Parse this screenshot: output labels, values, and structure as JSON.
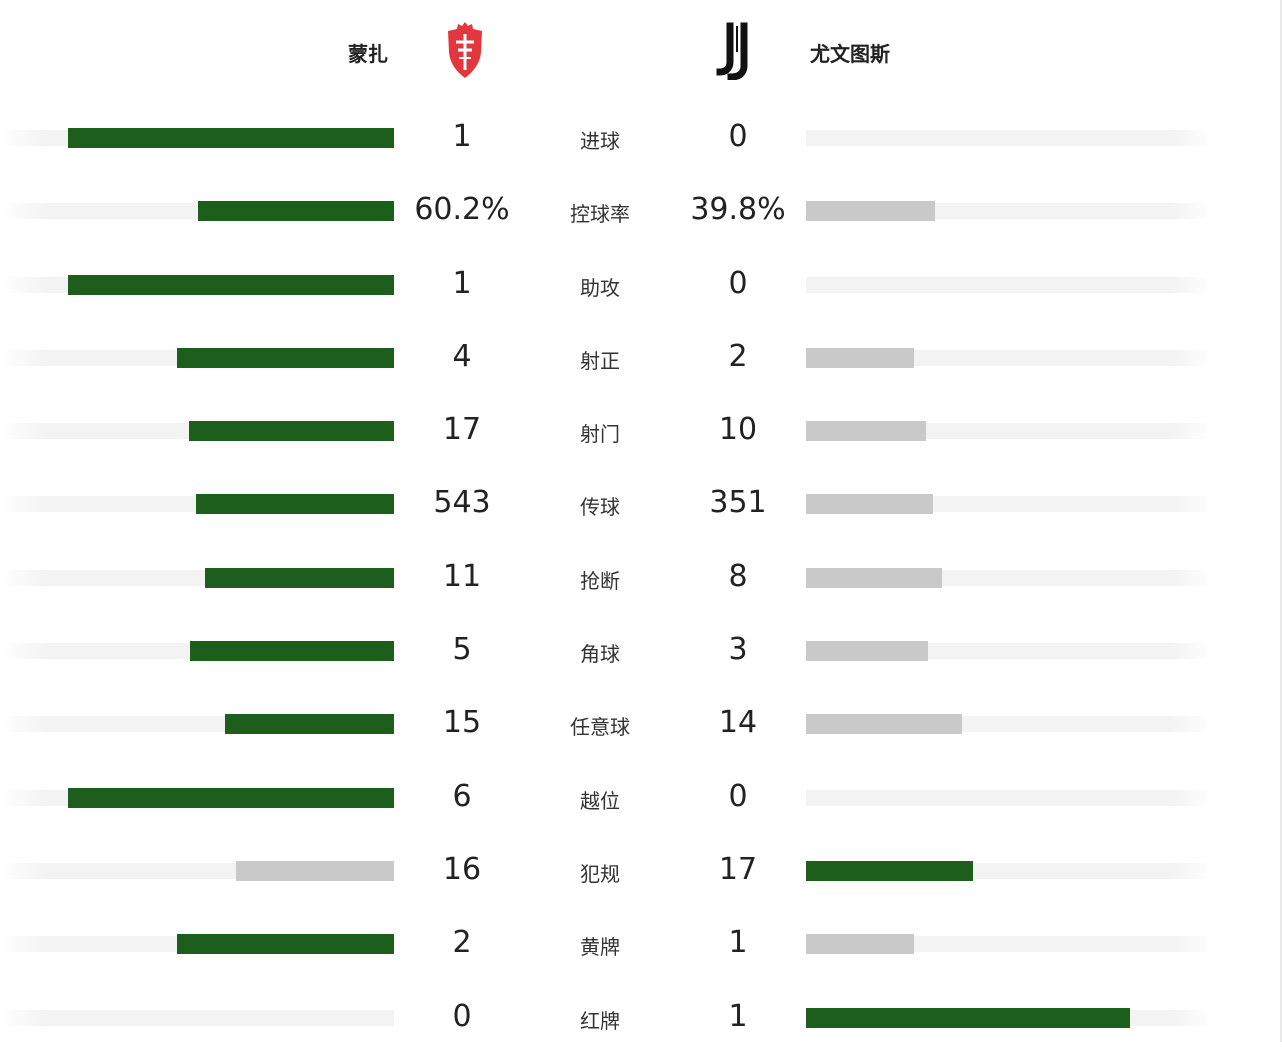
{
  "teams": {
    "home": {
      "name": "蒙扎",
      "logo_color": "#e2373d"
    },
    "away": {
      "name": "尤文图斯",
      "logo_color": "#111111"
    }
  },
  "colors": {
    "leader": "#1d5e1d",
    "trailer": "#c9c9c9",
    "track": "#f3f3f3"
  },
  "stats": [
    {
      "label": "进球",
      "home": "1",
      "away": "0",
      "home_share": 1.0,
      "away_share": 0.0
    },
    {
      "label": "控球率",
      "home": "60.2%",
      "away": "39.8%",
      "home_share": 0.602,
      "away_share": 0.398
    },
    {
      "label": "助攻",
      "home": "1",
      "away": "0",
      "home_share": 1.0,
      "away_share": 0.0
    },
    {
      "label": "射正",
      "home": "4",
      "away": "2",
      "home_share": 0.667,
      "away_share": 0.333
    },
    {
      "label": "射门",
      "home": "17",
      "away": "10",
      "home_share": 0.63,
      "away_share": 0.37
    },
    {
      "label": "传球",
      "home": "543",
      "away": "351",
      "home_share": 0.607,
      "away_share": 0.393
    },
    {
      "label": "抢断",
      "home": "11",
      "away": "8",
      "home_share": 0.579,
      "away_share": 0.421
    },
    {
      "label": "角球",
      "home": "5",
      "away": "3",
      "home_share": 0.625,
      "away_share": 0.375
    },
    {
      "label": "任意球",
      "home": "15",
      "away": "14",
      "home_share": 0.517,
      "away_share": 0.483
    },
    {
      "label": "越位",
      "home": "6",
      "away": "0",
      "home_share": 1.0,
      "away_share": 0.0
    },
    {
      "label": "犯规",
      "home": "16",
      "away": "17",
      "home_share": 0.485,
      "away_share": 0.515
    },
    {
      "label": "黄牌",
      "home": "2",
      "away": "1",
      "home_share": 0.667,
      "away_share": 0.333
    },
    {
      "label": "红牌",
      "home": "0",
      "away": "1",
      "home_share": 0.0,
      "away_share": 1.0
    }
  ]
}
